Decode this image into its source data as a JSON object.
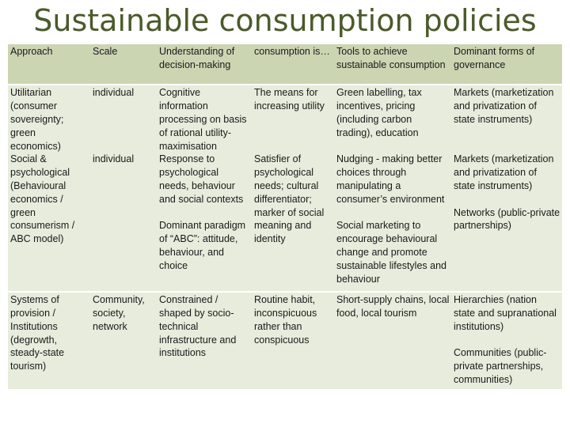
{
  "title": "Sustainable consumption policies",
  "headers": [
    "Approach",
    "Scale",
    "Understanding of decision-making",
    "consumption is…",
    "Tools to achieve sustainable consumption",
    "Dominant forms of governance"
  ],
  "rows": [
    {
      "approach_a": "Utilitarian (consumer sovereignty; green economics)",
      "approach_b": "Social & psychological (Behavioural economics / green consumerism / ABC model)",
      "scale_a": "individual",
      "scale_b": "individual",
      "understanding_a": "Cognitive information processing on basis of rational utility-maximisation",
      "understanding_b": "Response to psychological needs, behaviour and social contexts",
      "understanding_c": "Dominant paradigm of “ABC”: attitude, behaviour, and choice",
      "consumption_a": "The means for increasing utility",
      "consumption_b": "Satisfier of psychological needs; cultural differentiator; marker of social meaning and identity",
      "tools_a": "Green labelling, tax incentives, pricing (including carbon trading), education",
      "tools_b": "Nudging - making better choices through manipulating a consumer’s environment",
      "tools_c": "Social marketing to encourage behavioural change and promote sustainable lifestyles and behaviour",
      "governance_a": "Markets (marketization and privatization of state instruments)",
      "governance_b": "Markets (marketization and privatization of state instruments)",
      "governance_c": "Networks (public-private partnerships)"
    },
    {
      "approach": "Systems of provision / Institutions (degrowth, steady-state tourism)",
      "scale": "Community, society, network",
      "understanding": "Constrained / shaped by socio-technical infrastructure and institutions",
      "consumption": "Routine habit, inconspicuous rather than conspicuous",
      "tools": "Short-supply chains, local food, local tourism",
      "governance_a": "Hierarchies (nation state and supranational institutions)",
      "governance_b": "Communities (public-private partnerships, communities)"
    }
  ]
}
